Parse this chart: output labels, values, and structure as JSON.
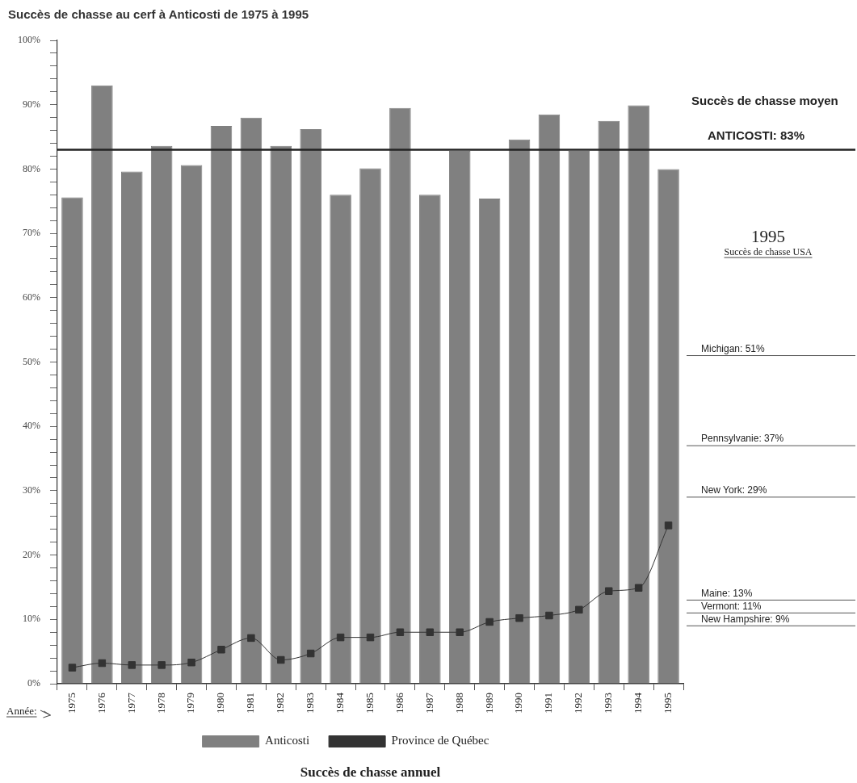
{
  "chart_data": {
    "type": "bar",
    "title": "Succès de chasse au cerf à Anticosti de 1975 à 1995",
    "xlabel": "Année:",
    "categories": [
      "1975",
      "1976",
      "1977",
      "1978",
      "1979",
      "1980",
      "1981",
      "1982",
      "1983",
      "1984",
      "1985",
      "1986",
      "1987",
      "1988",
      "1989",
      "1990",
      "1991",
      "1992",
      "1993",
      "1994",
      "1995"
    ],
    "series": [
      {
        "name": "Anticosti",
        "color": "#808080",
        "values": [
          75.6,
          93.0,
          79.6,
          83.6,
          80.6,
          86.7,
          88.0,
          83.6,
          86.2,
          76.0,
          80.1,
          89.5,
          76.0,
          82.8,
          75.4,
          84.6,
          88.5,
          82.8,
          87.5,
          89.9,
          80.0
        ]
      },
      {
        "name": "Province de Québec",
        "type": "line",
        "color": "#333333",
        "values": [
          2.5,
          3.2,
          2.9,
          2.9,
          3.3,
          5.3,
          7.1,
          3.7,
          4.7,
          7.2,
          7.2,
          8.0,
          8.0,
          8.0,
          9.6,
          10.2,
          10.6,
          11.5,
          14.4,
          14.9,
          24.6
        ]
      }
    ],
    "ylim": [
      0,
      100
    ],
    "yticks": [
      {
        "value": 0,
        "label": "0%"
      },
      {
        "value": 2,
        "label": null
      },
      {
        "value": 4,
        "label": null
      },
      {
        "value": 6,
        "label": null
      },
      {
        "value": 8,
        "label": null
      },
      {
        "value": 10,
        "label": "10%"
      },
      {
        "value": 12,
        "label": null
      },
      {
        "value": 14,
        "label": null
      },
      {
        "value": 16,
        "label": null
      },
      {
        "value": 18,
        "label": null
      },
      {
        "value": 20,
        "label": "20%"
      },
      {
        "value": 22,
        "label": null
      },
      {
        "value": 24,
        "label": null
      },
      {
        "value": 26,
        "label": null
      },
      {
        "value": 28,
        "label": null
      },
      {
        "value": 30,
        "label": "30%"
      },
      {
        "value": 32,
        "label": null
      },
      {
        "value": 34,
        "label": null
      },
      {
        "value": 36,
        "label": null
      },
      {
        "value": 38,
        "label": null
      },
      {
        "value": 40,
        "label": "40%"
      },
      {
        "value": 42,
        "label": null
      },
      {
        "value": 44,
        "label": null
      },
      {
        "value": 46,
        "label": null
      },
      {
        "value": 48,
        "label": null
      },
      {
        "value": 50,
        "label": "50%"
      },
      {
        "value": 52,
        "label": null
      },
      {
        "value": 54,
        "label": null
      },
      {
        "value": 56,
        "label": null
      },
      {
        "value": 58,
        "label": null
      },
      {
        "value": 60,
        "label": "60%"
      },
      {
        "value": 62,
        "label": null
      },
      {
        "value": 64,
        "label": null
      },
      {
        "value": 66,
        "label": null
      },
      {
        "value": 68,
        "label": null
      },
      {
        "value": 70,
        "label": "70%"
      },
      {
        "value": 72,
        "label": null
      },
      {
        "value": 74,
        "label": null
      },
      {
        "value": 76,
        "label": null
      },
      {
        "value": 78,
        "label": null
      },
      {
        "value": 80,
        "label": "80%"
      },
      {
        "value": 82,
        "label": null
      },
      {
        "value": 84,
        "label": null
      },
      {
        "value": 86,
        "label": null
      },
      {
        "value": 88,
        "label": null
      },
      {
        "value": 90,
        "label": "90%"
      },
      {
        "value": 92,
        "label": null
      },
      {
        "value": 94,
        "label": null
      },
      {
        "value": 96,
        "label": null
      },
      {
        "value": 98,
        "label": null
      },
      {
        "value": 100,
        "label": "100%"
      }
    ],
    "ref_lines": [
      {
        "axis": "y",
        "value": 83,
        "label": "ANTICOSTI: 83%",
        "color": "#222222"
      },
      {
        "axis": "y",
        "value": 51,
        "label": "Michigan: 51%",
        "color": "#555555"
      },
      {
        "axis": "y",
        "value": 37,
        "label": "Pennsylvanie: 37%",
        "color": "#555555"
      },
      {
        "axis": "y",
        "value": 29,
        "label": "New York: 29%",
        "color": "#555555"
      },
      {
        "axis": "y",
        "value": 13,
        "label": "Maine: 13%",
        "color": "#555555"
      },
      {
        "axis": "y",
        "value": 11,
        "label": "Vermont: 11%",
        "color": "#555555"
      },
      {
        "axis": "y",
        "value": 9,
        "label": "New Hampshire: 9%",
        "color": "#555555"
      }
    ],
    "annotations": [
      "Succès de chasse moyen",
      "1995",
      "Succès de chasse USA",
      "Succès de chasse annuel"
    ],
    "legend": "bottom",
    "marker": "square"
  }
}
